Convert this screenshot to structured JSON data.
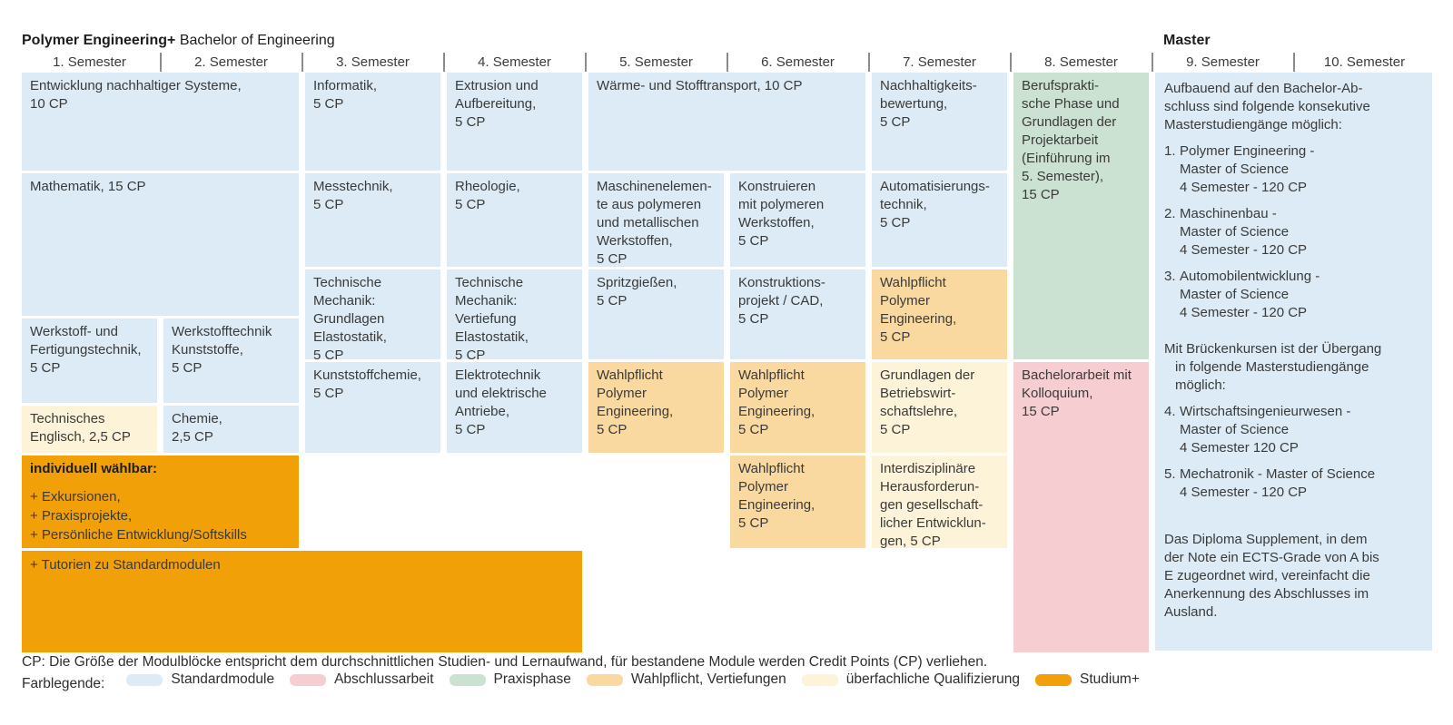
{
  "header": {
    "program": "Polymer Engineering+",
    "degree": "Bachelor of Engineering",
    "master": "Master"
  },
  "semesters": [
    "1. Semester",
    "2. Semester",
    "3. Semester",
    "4. Semester",
    "5. Semester",
    "6. Semester",
    "7. Semester",
    "8. Semester",
    "9. Semester",
    "10. Semester"
  ],
  "palette": {
    "standard": "#dcebf6",
    "abschluss": "#f6ced2",
    "praxis": "#cbe2d2",
    "wahlpflicht": "#fad9a0",
    "ueberfachlich": "#fdf3d9",
    "studium": "#f2a008"
  },
  "blocks": [
    {
      "name": "module-entwicklung-nachhaltiger-systeme",
      "col": 1,
      "span": 2,
      "row": "A",
      "color": "standard",
      "lines": [
        "Entwicklung nachhaltiger Systeme,",
        "10 CP"
      ]
    },
    {
      "name": "module-informatik",
      "col": 3,
      "span": 1,
      "row": "A",
      "color": "standard",
      "lines": [
        "Informatik,",
        "5 CP"
      ]
    },
    {
      "name": "module-extrusion-aufbereitung",
      "col": 4,
      "span": 1,
      "row": "A",
      "color": "standard",
      "lines": [
        "Extrusion und",
        "Aufbereitung,",
        "5 CP"
      ]
    },
    {
      "name": "module-waerme-stofftransport",
      "col": 5,
      "span": 2,
      "row": "A",
      "color": "standard",
      "lines": [
        "Wärme- und Stofftransport, 10 CP"
      ]
    },
    {
      "name": "module-nachhaltigkeitsbewertung",
      "col": 7,
      "span": 1,
      "row": "A",
      "color": "standard",
      "lines": [
        "Nachhaltigkeits-",
        "bewertung,",
        "5 CP"
      ]
    },
    {
      "name": "module-berufspraktische-phase",
      "col": 8,
      "span": 1,
      "row": "GREEN",
      "color": "praxis",
      "lines": [
        "Berufsprakti-",
        "sche Phase und",
        "Grundlagen der",
        "Projektarbeit",
        "(Einführung im",
        "5. Semester),",
        "15 CP"
      ]
    },
    {
      "name": "module-mathematik",
      "col": 1,
      "span": 2,
      "row": "MATH",
      "color": "standard",
      "lines": [
        "Mathematik, 15 CP"
      ]
    },
    {
      "name": "module-messtechnik",
      "col": 3,
      "span": 1,
      "row": "B",
      "color": "standard",
      "lines": [
        "Messtechnik,",
        "5 CP"
      ]
    },
    {
      "name": "module-rheologie",
      "col": 4,
      "span": 1,
      "row": "B",
      "color": "standard",
      "lines": [
        "Rheologie,",
        "5 CP"
      ]
    },
    {
      "name": "module-maschinenelemente",
      "col": 5,
      "span": 1,
      "row": "B",
      "color": "standard",
      "lines": [
        "Maschinenelemen-",
        "te aus polymeren",
        "und metallischen",
        "Werkstoffen,",
        "5 CP"
      ]
    },
    {
      "name": "module-konstruieren-polymere",
      "col": 6,
      "span": 1,
      "row": "B",
      "color": "standard",
      "lines": [
        "Konstruieren",
        "mit polymeren",
        "Werkstoffen,",
        "5 CP"
      ]
    },
    {
      "name": "module-automatisierungstechnik",
      "col": 7,
      "span": 1,
      "row": "B",
      "color": "standard",
      "lines": [
        "Automatisierungs-",
        "technik,",
        "5 CP"
      ]
    },
    {
      "name": "module-tm-grundlagen-elastostatik",
      "col": 3,
      "span": 1,
      "row": "C",
      "color": "standard",
      "lines": [
        "Technische",
        "Mechanik:",
        "Grundlagen",
        "Elastostatik,",
        "5 CP"
      ]
    },
    {
      "name": "module-tm-vertiefung-elastostatik",
      "col": 4,
      "span": 1,
      "row": "C",
      "color": "standard",
      "lines": [
        "Technische",
        "Mechanik:",
        "Vertiefung",
        "Elastostatik,",
        "5 CP"
      ]
    },
    {
      "name": "module-spritzgiessen",
      "col": 5,
      "span": 1,
      "row": "C",
      "color": "standard",
      "lines": [
        "Spritzgießen,",
        "5 CP"
      ]
    },
    {
      "name": "module-konstruktionsprojekt-cad",
      "col": 6,
      "span": 1,
      "row": "C",
      "color": "standard",
      "lines": [
        "Konstruktions-",
        "projekt / CAD,",
        "5 CP"
      ]
    },
    {
      "name": "module-wahlpflicht-sem7",
      "col": 7,
      "span": 1,
      "row": "C",
      "color": "wahlpflicht",
      "lines": [
        "Wahlpflicht",
        "Polymer",
        "Engineering,",
        "5 CP"
      ]
    },
    {
      "name": "module-werkstoff-fertigungstechnik",
      "col": 1,
      "span": 1,
      "row": "WERK",
      "color": "standard",
      "lines": [
        "Werkstoff- und",
        "Fertigungstechnik,",
        "5 CP"
      ]
    },
    {
      "name": "module-werkstofftechnik-kunststoffe",
      "col": 2,
      "span": 1,
      "row": "WERK",
      "color": "standard",
      "lines": [
        "Werkstofftechnik",
        "Kunststoffe,",
        "5 CP"
      ]
    },
    {
      "name": "module-technisches-englisch",
      "col": 1,
      "span": 1,
      "row": "ENG",
      "color": "ueberfachlich",
      "lines": [
        "Technisches",
        "Englisch, 2,5 CP"
      ]
    },
    {
      "name": "module-chemie",
      "col": 2,
      "span": 1,
      "row": "ENG",
      "color": "standard",
      "lines": [
        "Chemie,",
        "2,5 CP"
      ]
    },
    {
      "name": "module-kunststoffchemie",
      "col": 3,
      "span": 1,
      "row": "D",
      "color": "standard",
      "lines": [
        "Kunststoffchemie,",
        "5 CP"
      ]
    },
    {
      "name": "module-elektrotechnik-antriebe",
      "col": 4,
      "span": 1,
      "row": "D",
      "color": "standard",
      "lines": [
        "Elektrotechnik",
        "und elektrische",
        "Antriebe,",
        "5 CP"
      ]
    },
    {
      "name": "module-wahlpflicht-sem5",
      "col": 5,
      "span": 1,
      "row": "D",
      "color": "wahlpflicht",
      "lines": [
        "Wahlpflicht",
        "Polymer",
        "Engineering,",
        "5 CP"
      ]
    },
    {
      "name": "module-wahlpflicht-sem6-a",
      "col": 6,
      "span": 1,
      "row": "D",
      "color": "wahlpflicht",
      "lines": [
        "Wahlpflicht",
        "Polymer",
        "Engineering,",
        "5 CP"
      ]
    },
    {
      "name": "module-grundlagen-bwl",
      "col": 7,
      "span": 1,
      "row": "D",
      "color": "ueberfachlich",
      "lines": [
        "Grundlagen der",
        "Betriebswirt-",
        "schaftslehre,",
        "5 CP"
      ]
    },
    {
      "name": "module-bachelorarbeit",
      "col": 8,
      "span": 1,
      "row": "PINK",
      "color": "abschluss",
      "lines": [
        "Bachelorarbeit mit",
        "Kolloquium,",
        "15 CP"
      ]
    },
    {
      "name": "module-wahlpflicht-sem6-b",
      "col": 6,
      "span": 1,
      "row": "E",
      "color": "wahlpflicht",
      "lines": [
        "Wahlpflicht",
        "Polymer",
        "Engineering,",
        "5 CP"
      ]
    },
    {
      "name": "module-interdisziplinaere-herausforderungen",
      "col": 7,
      "span": 1,
      "row": "E",
      "color": "ueberfachlich",
      "lines": [
        "Interdisziplinäre",
        "Herausforderun-",
        "gen gesellschaft-",
        "licher Entwicklun-",
        "gen, 5 CP"
      ]
    },
    {
      "name": "module-studium-plus-individuell",
      "col": 1,
      "span": 2,
      "row": "E",
      "color": "studium",
      "title": "individuell wählbar:",
      "lines": [
        "+ Exkursionen,",
        "+ Praxisprojekte,",
        "+ Persönliche Entwicklung/Softskills"
      ]
    },
    {
      "name": "module-tutorien",
      "col": 1,
      "span": 4,
      "row": "F",
      "color": "studium",
      "lines": [
        "+ Tutorien zu Standardmodulen"
      ]
    }
  ],
  "master": {
    "name": "master-info-panel",
    "color": "standard",
    "paragraphs": [
      {
        "lines": [
          "Aufbauend auf den Bachelor-Ab-",
          "schluss sind folgende konsekutive",
          "Masterstudiengänge möglich:"
        ]
      },
      {
        "num": "1.",
        "lines": [
          "Polymer Engineering -",
          "Master of Science",
          "4 Semester - 120 CP"
        ]
      },
      {
        "num": "2.",
        "lines": [
          "Maschinenbau -",
          "Master of Science",
          "4 Semester - 120 CP"
        ]
      },
      {
        "num": "3.",
        "lines": [
          "Automobilentwicklung -",
          "Master of Science",
          "4 Semester - 120 CP"
        ]
      },
      {
        "cls": "hang gap1",
        "lines": [
          "Mit Brückenkursen ist der Übergang",
          "in folgende Masterstudiengänge",
          "möglich:"
        ]
      },
      {
        "num": "4.",
        "lines": [
          "Wirtschaftsingenieurwesen -",
          "Master of Science",
          "4 Semester 120 CP"
        ]
      },
      {
        "num": "5.",
        "lines": [
          "Mechatronik - Master of Science",
          "4 Semester - 120 CP"
        ]
      },
      {
        "cls": "gap2",
        "lines": [
          "Das Diploma Supplement, in dem",
          "der Note ein ECTS-Grade von A bis",
          "E zugeordnet wird, vereinfacht die",
          "Anerkennung des Abschlusses im",
          "Ausland."
        ]
      }
    ]
  },
  "footer": {
    "cp_note": "CP: Die Größe der Modulblöcke entspricht dem durchschnittlichen Studien- und Lernaufwand, für bestandene Module werden Credit Points (CP) verliehen.",
    "legend_label": "Farblegende:",
    "legend": [
      {
        "label": "Standardmodule",
        "color": "standard"
      },
      {
        "label": "Abschlussarbeit",
        "color": "abschluss"
      },
      {
        "label": "Praxisphase",
        "color": "praxis"
      },
      {
        "label": "Wahlpflicht, Vertiefungen",
        "color": "wahlpflicht"
      },
      {
        "label": "überfachliche Qualifizierung",
        "color": "ueberfachlich"
      },
      {
        "label": "Studium+",
        "color": "studium"
      }
    ]
  }
}
